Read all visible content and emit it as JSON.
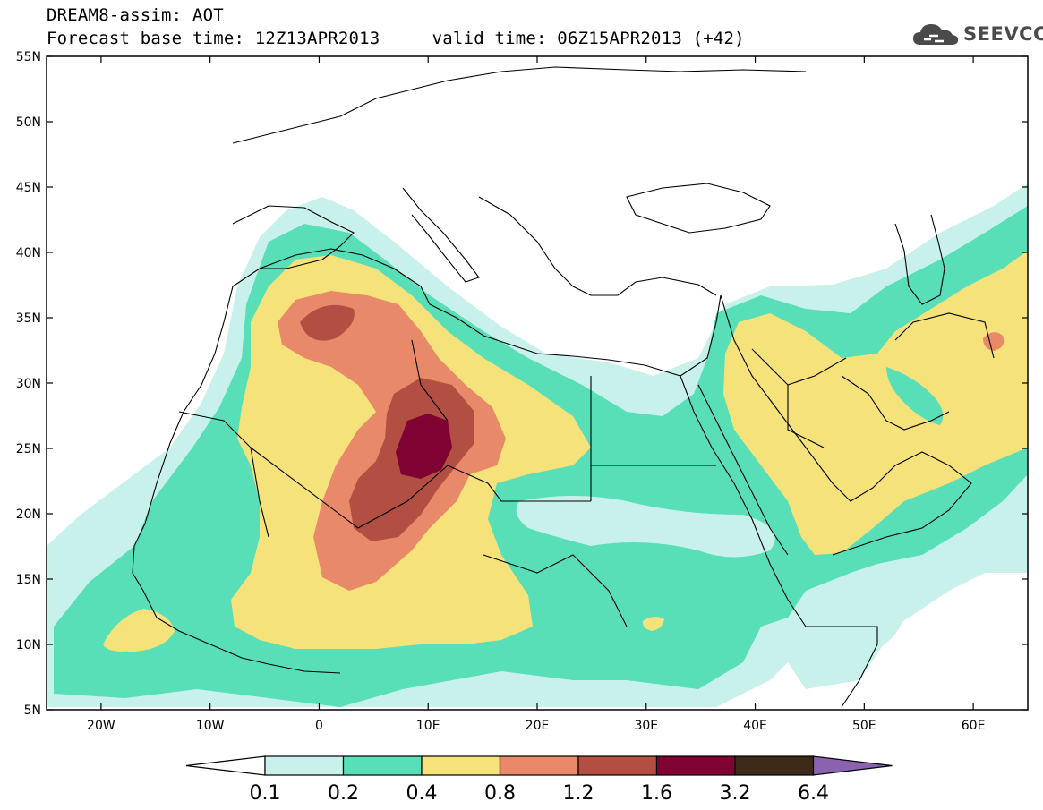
{
  "header": {
    "line1": "DREAM8-assim: AOT",
    "line2": "Forecast base time: 12Z13APR2013     valid time: 06Z15APR2013 (+42)"
  },
  "brand": {
    "name": "SEEVCCC",
    "icon": "cloud-logo-icon"
  },
  "axes": {
    "lat_labels": [
      "55N",
      "50N",
      "45N",
      "40N",
      "35N",
      "30N",
      "25N",
      "20N",
      "15N",
      "10N",
      "5N"
    ],
    "lat_values": [
      55,
      50,
      45,
      40,
      35,
      30,
      25,
      20,
      15,
      10,
      5
    ],
    "lon_labels": [
      "20W",
      "10W",
      "0",
      "10E",
      "20E",
      "30E",
      "40E",
      "50E",
      "60E"
    ],
    "lon_values": [
      -20,
      -10,
      0,
      10,
      20,
      30,
      40,
      50,
      60
    ],
    "lon_range": [
      -25,
      65
    ],
    "lat_range": [
      5,
      55
    ]
  },
  "colorbar": {
    "labels": [
      "0.1",
      "0.2",
      "0.4",
      "0.8",
      "1.2",
      "1.6",
      "3.2",
      "6.4"
    ],
    "colors": [
      "#ffffff",
      "#c9f1ec",
      "#58dfb8",
      "#f5e27a",
      "#e8896a",
      "#b24f42",
      "#7e0232",
      "#3d2a18",
      "#8a62b0"
    ]
  },
  "field": {
    "variable": "AOT",
    "contour_levels": [
      0.1,
      0.2,
      0.4,
      0.8,
      1.2,
      1.6,
      3.2,
      6.4
    ],
    "max_region_lonlat": [
      9,
      24.5
    ],
    "max_level": 3.2
  }
}
